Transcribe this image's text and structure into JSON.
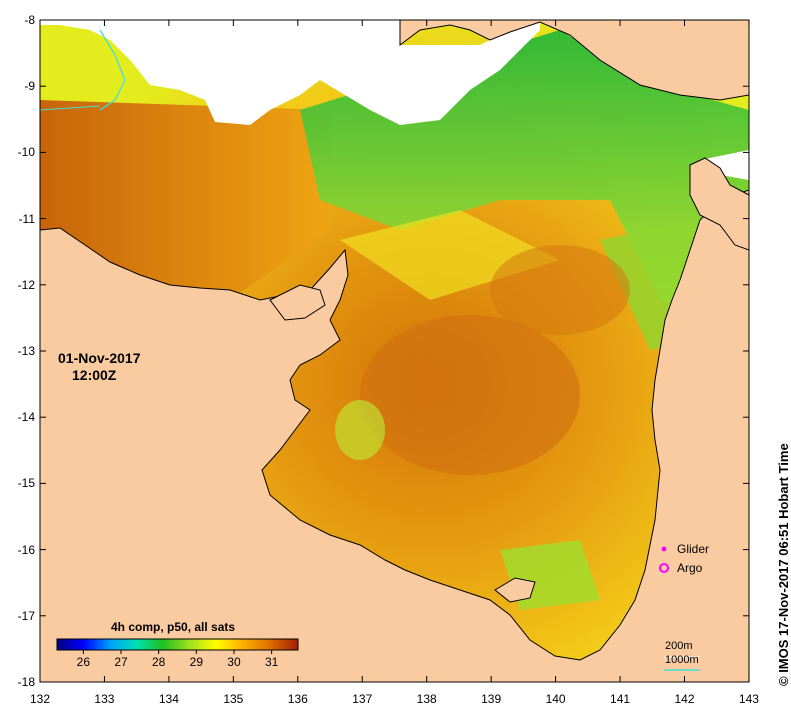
{
  "map": {
    "date": "01-Nov-2017",
    "time": "12:00Z",
    "lat_ticks": [
      "-8",
      "-9",
      "-10",
      "-11",
      "-12",
      "-13",
      "-14",
      "-15",
      "-16",
      "-17",
      "-18"
    ],
    "lon_ticks": [
      "132",
      "133",
      "134",
      "135",
      "136",
      "137",
      "138",
      "139",
      "140",
      "141",
      "142",
      "143"
    ],
    "extent": {
      "lon": [
        132,
        143
      ],
      "lat": [
        -18,
        -8
      ]
    },
    "colors": {
      "land": "#facba0",
      "cloud": "#ffffff",
      "coast": "#000000"
    }
  },
  "legend": {
    "title": "4h comp, p50, all sats",
    "colorbar_labels": [
      "26",
      "27",
      "28",
      "29",
      "30",
      "31"
    ],
    "colorbar_range": [
      25.3,
      31.7
    ],
    "colors": [
      "#000080",
      "#0000ff",
      "#00a0ff",
      "#00e0b0",
      "#20c020",
      "#a0e020",
      "#ffff00",
      "#ffb000",
      "#e07000",
      "#a02000"
    ]
  },
  "symbols": [
    {
      "label": "Glider",
      "color": "#ff00ff",
      "icon": "dot-icon"
    },
    {
      "label": "Argo",
      "color": "#ff00ff",
      "icon": "circle-icon"
    }
  ],
  "bathymetry": {
    "lines": [
      "200m",
      "1000m"
    ],
    "color_1000m": "#40e0d0"
  },
  "credit": "© IMOS 17-Nov-2017 06:51 Hobart Time"
}
